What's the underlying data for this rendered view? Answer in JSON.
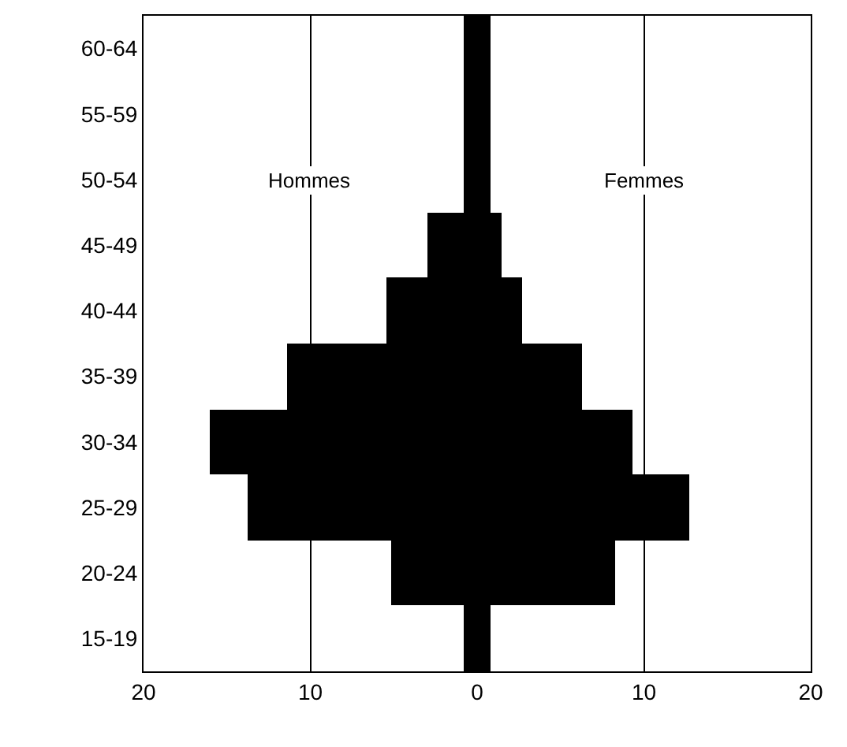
{
  "chart_data": {
    "type": "bar",
    "orientation": "horizontal",
    "stacked": true,
    "categories": [
      "60-64",
      "55-59",
      "50-54",
      "45-49",
      "40-44",
      "35-39",
      "30-34",
      "25-29",
      "20-24",
      "15-19"
    ],
    "series": [
      {
        "color": "#000000",
        "values": [
          -0.8,
          -0.8,
          -0.8,
          -3.0,
          -5.4,
          -11.4,
          -16.0,
          -13.8,
          -5.2,
          -0.8
        ]
      },
      {
        "color": "#000000",
        "values": [
          0.8,
          0.8,
          0.8,
          1.5,
          2.7,
          6.3,
          9.3,
          12.7,
          8.3,
          0.8
        ]
      }
    ],
    "annotations": [
      "Hommes",
      "Femmes"
    ],
    "xlim": [
      -20,
      20
    ],
    "xticks": [
      {
        "value": -20,
        "label": "20"
      },
      {
        "value": -10,
        "label": "10"
      },
      0,
      10,
      20
    ],
    "grid": "x",
    "legend": false
  }
}
